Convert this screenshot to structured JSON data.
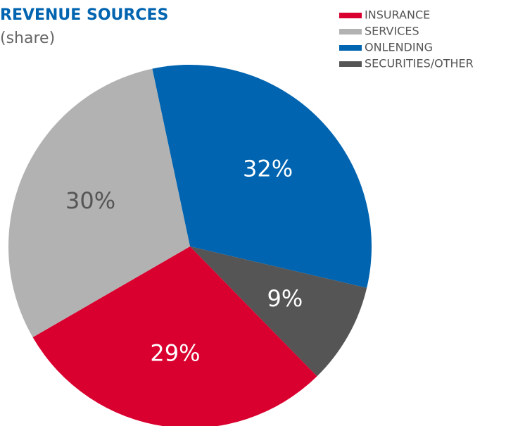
{
  "chart_data": {
    "type": "pie",
    "title": "REVENUE SOURCES",
    "subtitle": "(share)",
    "categories": [
      "INSURANCE",
      "SERVICES",
      "ONLENDING",
      "SECURITIES/OTHER"
    ],
    "values": [
      29,
      30,
      32,
      9
    ],
    "value_labels": [
      "29%",
      "30%",
      "32%",
      "9%"
    ],
    "colors": [
      "#d9002f",
      "#b2b2b2",
      "#0064b0",
      "#555555"
    ],
    "legend": "top-right"
  }
}
